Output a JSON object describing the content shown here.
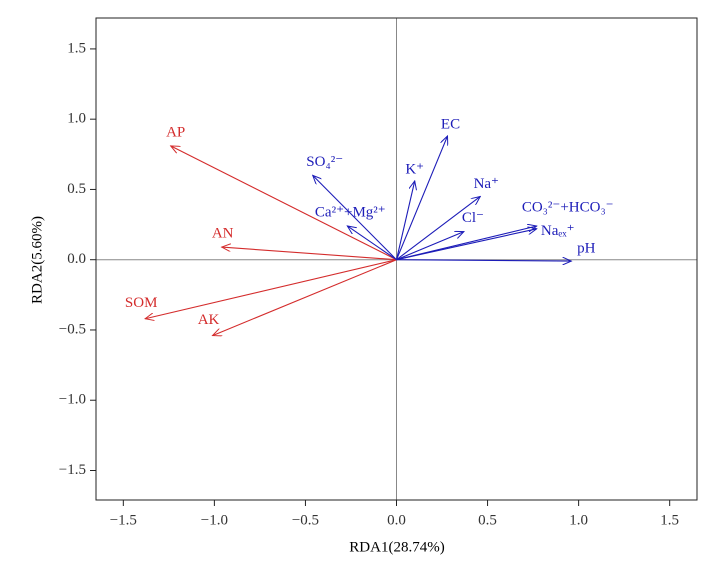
{
  "chart_data": {
    "type": "biplot",
    "x_label": "RDA1(28.74%)",
    "y_label": "RDA2(5.60%)",
    "xlim": [
      -1.65,
      1.65
    ],
    "ylim": [
      -1.71,
      1.72
    ],
    "xticks": [
      {
        "value": -1.5,
        "label": "−1.5"
      },
      {
        "value": -1,
        "label": "−1.0"
      },
      {
        "value": -0.5,
        "label": "−0.5"
      },
      {
        "value": 0,
        "label": "0.0"
      },
      {
        "value": 0.5,
        "label": "0.5"
      },
      {
        "value": 1,
        "label": "1.0"
      },
      {
        "value": 1.5,
        "label": "1.5"
      }
    ],
    "yticks": [
      {
        "value": -1.5,
        "label": "−1.5"
      },
      {
        "value": -1,
        "label": "−1.0"
      },
      {
        "value": -0.5,
        "label": "−0.5"
      },
      {
        "value": 0,
        "label": "0.0"
      },
      {
        "value": 0.5,
        "label": "0.5"
      },
      {
        "value": 1,
        "label": "1.0"
      },
      {
        "value": 1.5,
        "label": "1.5"
      }
    ],
    "groups": [
      {
        "color": "#d42c2c",
        "labels": [
          "AP",
          "AN",
          "SOM",
          "AK"
        ],
        "x": [
          -1.24,
          -0.96,
          -1.38,
          -1.01
        ],
        "y": [
          0.81,
          0.09,
          -0.42,
          -0.54
        ]
      },
      {
        "color": "#1c1cb8",
        "labels": [
          "SO₄²⁻",
          "Ca²⁺+Mg²⁺",
          "K⁺",
          "EC",
          "Na⁺",
          "Cl⁻",
          "CO₃²⁻+HCO₃⁻",
          "Naₑₓ⁺",
          "pH"
        ],
        "x": [
          -0.46,
          -0.27,
          0.1,
          0.28,
          0.46,
          0.37,
          0.77,
          0.77,
          0.96
        ],
        "y": [
          0.6,
          0.24,
          0.56,
          0.88,
          0.45,
          0.2,
          0.24,
          0.22,
          -0.01
        ]
      }
    ]
  }
}
